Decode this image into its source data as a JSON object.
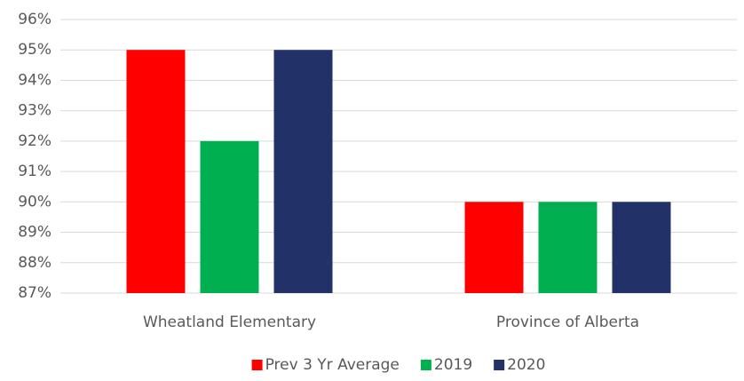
{
  "chart_data": {
    "type": "bar",
    "categories": [
      "Wheatland Elementary",
      "Province of Alberta"
    ],
    "series": [
      {
        "name": "Prev 3 Yr Average",
        "color": "#ff0000",
        "values": [
          95,
          90
        ]
      },
      {
        "name": "2019",
        "color": "#00b050",
        "values": [
          92,
          90
        ]
      },
      {
        "name": "2020",
        "color": "#233169",
        "values": [
          95,
          90
        ]
      }
    ],
    "ylim": [
      87,
      96
    ],
    "yticks": [
      {
        "value": 87,
        "label": "87%"
      },
      {
        "value": 88,
        "label": "88%"
      },
      {
        "value": 89,
        "label": "89%"
      },
      {
        "value": 90,
        "label": "90%"
      },
      {
        "value": 91,
        "label": "91%"
      },
      {
        "value": 92,
        "label": "92%"
      },
      {
        "value": 93,
        "label": "93%"
      },
      {
        "value": 94,
        "label": "94%"
      },
      {
        "value": 95,
        "label": "95%"
      },
      {
        "value": 96,
        "label": "96%"
      }
    ],
    "grid": true,
    "legend": "bottom"
  }
}
